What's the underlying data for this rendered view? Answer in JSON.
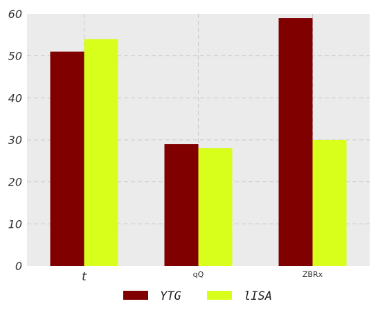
{
  "chart_data": {
    "type": "bar",
    "title": "",
    "xlabel": "",
    "ylabel": "",
    "categories": [
      "t",
      "qQ",
      "ZBRx"
    ],
    "series": [
      {
        "name": "YTG",
        "values": [
          51,
          29,
          59
        ],
        "color": "#800000"
      },
      {
        "name": "lISA",
        "values": [
          54,
          28,
          30
        ],
        "color": "#d8ff1c"
      }
    ],
    "ylim": [
      0,
      60
    ],
    "yticks": [
      0,
      10,
      20,
      30,
      40,
      50,
      60
    ],
    "grid": true,
    "legend_position": "bottom-center",
    "background": "#ebebeb"
  }
}
